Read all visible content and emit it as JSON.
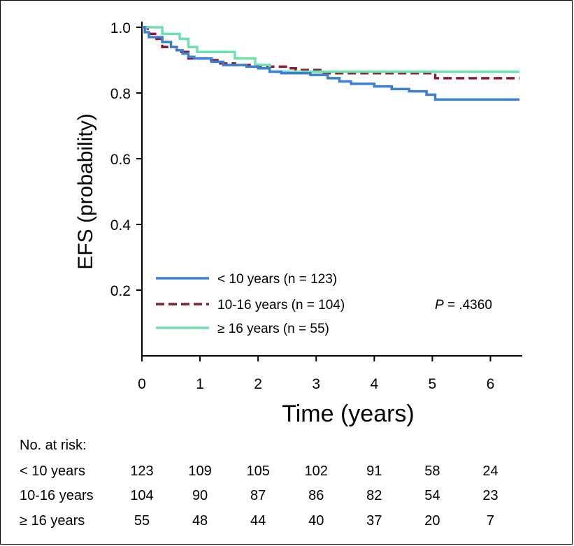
{
  "chart_data": {
    "type": "line",
    "subtype": "kaplan-meier step curve",
    "title": "",
    "xlabel": "Time (years)",
    "ylabel": "EFS (probability)",
    "xlim": [
      0,
      6.5
    ],
    "ylim": [
      0,
      1.0
    ],
    "x_ticks": [
      "0",
      "1",
      "2",
      "3",
      "4",
      "5",
      "6"
    ],
    "y_ticks": [
      "0.2",
      "0.4",
      "0.6",
      "0.8",
      "1.0"
    ],
    "grid": false,
    "p_value": {
      "label": "P",
      "text": " = .4360"
    },
    "legend_position": "bottom-left",
    "series": [
      {
        "name": "< 10 years (n = 123)",
        "color": "#3a7fd4",
        "dash": "solid",
        "points": [
          [
            0,
            1.0
          ],
          [
            0.05,
            0.985
          ],
          [
            0.12,
            0.97
          ],
          [
            0.35,
            0.955
          ],
          [
            0.5,
            0.94
          ],
          [
            0.6,
            0.93
          ],
          [
            0.7,
            0.92
          ],
          [
            0.8,
            0.91
          ],
          [
            0.9,
            0.905
          ],
          [
            1.2,
            0.895
          ],
          [
            1.4,
            0.885
          ],
          [
            1.8,
            0.88
          ],
          [
            2.0,
            0.875
          ],
          [
            2.2,
            0.865
          ],
          [
            2.4,
            0.86
          ],
          [
            2.9,
            0.855
          ],
          [
            3.2,
            0.845
          ],
          [
            3.4,
            0.835
          ],
          [
            3.6,
            0.828
          ],
          [
            4.0,
            0.82
          ],
          [
            4.3,
            0.812
          ],
          [
            4.6,
            0.805
          ],
          [
            4.9,
            0.795
          ],
          [
            5.05,
            0.78
          ],
          [
            6.5,
            0.78
          ]
        ]
      },
      {
        "name": "10-16 years (n = 104)",
        "color": "#8b1f2f",
        "dash": "dashed",
        "points": [
          [
            0,
            1.0
          ],
          [
            0.1,
            0.98
          ],
          [
            0.25,
            0.965
          ],
          [
            0.35,
            0.94
          ],
          [
            0.6,
            0.925
          ],
          [
            0.8,
            0.905
          ],
          [
            1.15,
            0.9
          ],
          [
            1.3,
            0.89
          ],
          [
            1.6,
            0.885
          ],
          [
            2.0,
            0.88
          ],
          [
            2.5,
            0.875
          ],
          [
            2.65,
            0.87
          ],
          [
            3.1,
            0.86
          ],
          [
            4.95,
            0.86
          ],
          [
            5.05,
            0.845
          ],
          [
            6.5,
            0.845
          ]
        ]
      },
      {
        "name": "≥ 16 years (n = 55)",
        "color": "#6fe0b0",
        "dash": "solid",
        "points": [
          [
            0,
            1.0
          ],
          [
            0.35,
            0.98
          ],
          [
            0.65,
            0.965
          ],
          [
            0.8,
            0.94
          ],
          [
            0.95,
            0.925
          ],
          [
            1.6,
            0.905
          ],
          [
            1.95,
            0.885
          ],
          [
            2.2,
            0.865
          ],
          [
            6.5,
            0.865
          ]
        ]
      }
    ],
    "number_at_risk": {
      "title": "No. at risk:",
      "times": [
        0,
        1,
        2,
        3,
        4,
        5,
        6
      ],
      "rows": [
        {
          "label": "< 10 years",
          "values": [
            "123",
            "109",
            "105",
            "102",
            "91",
            "58",
            "24"
          ]
        },
        {
          "label": "10-16 years",
          "values": [
            "104",
            "90",
            "87",
            "86",
            "82",
            "54",
            "23"
          ]
        },
        {
          "label": "≥ 16 years",
          "values": [
            "55",
            "48",
            "44",
            "40",
            "37",
            "20",
            "7"
          ]
        }
      ]
    }
  }
}
